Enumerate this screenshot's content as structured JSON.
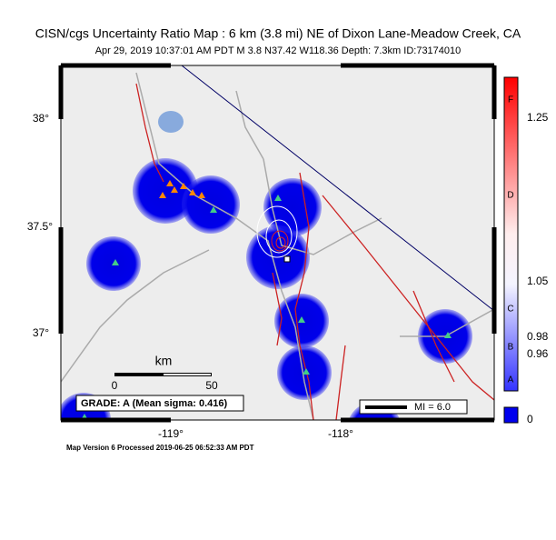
{
  "header": {
    "title": "CISN/cgs Uncertainty Ratio Map : 6 km (3.8 mi) NE of Dixon Lane-Meadow Creek, CA",
    "subtitle": "Apr 29, 2019 10:37:01 AM PDT   M 3.8   N37.42 W118.36   Depth: 7.3km   ID:73174010"
  },
  "map": {
    "lat_labels": [
      "38°",
      "37.5°",
      "37°"
    ],
    "lon_labels": [
      "-119°",
      "-118°"
    ],
    "scale_bar": {
      "unit": "km",
      "labels": [
        "0",
        "50"
      ]
    },
    "grade": "GRADE: A (Mean sigma: 0.416)",
    "legend": "MI = 6.0"
  },
  "colorbar": {
    "letters": [
      "F",
      "D",
      "C",
      "B",
      "A"
    ],
    "labels": [
      "1.25",
      "1.05",
      "0.98",
      "0.96",
      "0"
    ]
  },
  "footer": "Map Version 6 Processed 2019-06-25 06:52:33 AM PDT"
}
